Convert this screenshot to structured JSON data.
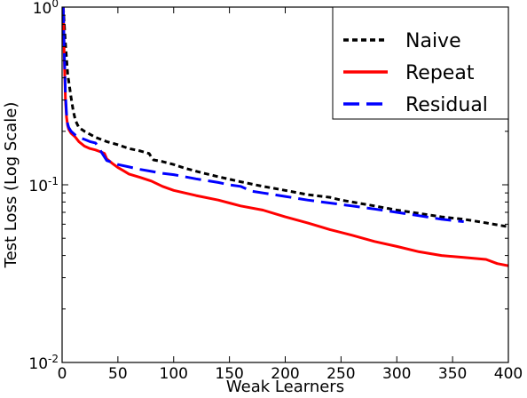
{
  "chart_data": {
    "type": "line",
    "title": "",
    "xlabel": "Weak Learners",
    "ylabel": "Test Loss (Log Scale)",
    "xlim": [
      0,
      400
    ],
    "ylim": [
      0.01,
      1
    ],
    "yscale": "log",
    "grid": false,
    "legend_placement": "top-right",
    "x_ticks": [
      0,
      50,
      100,
      150,
      200,
      250,
      300,
      350,
      400
    ],
    "x_tick_labels": [
      "0",
      "50",
      "100",
      "150",
      "200",
      "250",
      "300",
      "350",
      "400"
    ],
    "y_ticks": [
      1,
      0.1,
      0.01
    ],
    "y_tick_labels": [
      {
        "base": "10",
        "exp": "0"
      },
      {
        "base": "10",
        "exp": "-1"
      },
      {
        "base": "10",
        "exp": "-2"
      }
    ],
    "series": [
      {
        "name": "Naive",
        "color": "#000000",
        "style": "dotted",
        "x": [
          1,
          3,
          5,
          8,
          10,
          12,
          15,
          20,
          30,
          40,
          50,
          60,
          70,
          78,
          80,
          82,
          90,
          100,
          110,
          125,
          140,
          160,
          180,
          200,
          220,
          240,
          250,
          260,
          280,
          300,
          320,
          340,
          360,
          380,
          400
        ],
        "y": [
          1.0,
          0.62,
          0.42,
          0.31,
          0.26,
          0.23,
          0.21,
          0.2,
          0.185,
          0.175,
          0.168,
          0.16,
          0.155,
          0.15,
          0.143,
          0.138,
          0.135,
          0.13,
          0.124,
          0.117,
          0.111,
          0.104,
          0.098,
          0.093,
          0.088,
          0.085,
          0.082,
          0.08,
          0.076,
          0.072,
          0.069,
          0.066,
          0.064,
          0.061,
          0.058
        ]
      },
      {
        "name": "Repeat",
        "color": "#ff0000",
        "style": "solid",
        "x": [
          1,
          2,
          3,
          4,
          5,
          6,
          8,
          10,
          12,
          15,
          20,
          25,
          30,
          35,
          38,
          40,
          45,
          50,
          55,
          60,
          70,
          80,
          90,
          100,
          120,
          140,
          150,
          160,
          180,
          200,
          220,
          240,
          260,
          280,
          300,
          320,
          340,
          360,
          380,
          390,
          400
        ],
        "y": [
          1.0,
          0.5,
          0.3,
          0.24,
          0.215,
          0.205,
          0.195,
          0.19,
          0.185,
          0.175,
          0.165,
          0.16,
          0.157,
          0.153,
          0.15,
          0.14,
          0.132,
          0.125,
          0.12,
          0.115,
          0.11,
          0.105,
          0.098,
          0.093,
          0.087,
          0.082,
          0.079,
          0.076,
          0.072,
          0.066,
          0.061,
          0.056,
          0.052,
          0.048,
          0.045,
          0.042,
          0.04,
          0.039,
          0.038,
          0.036,
          0.035
        ]
      },
      {
        "name": "Residual",
        "color": "#0000ff",
        "style": "dashed",
        "x": [
          1,
          2,
          3,
          4,
          5,
          6,
          8,
          10,
          12,
          15,
          20,
          25,
          30,
          40,
          50,
          60,
          70,
          80,
          90,
          100,
          120,
          140,
          150,
          160,
          170,
          180,
          200,
          220,
          240,
          260,
          280,
          300,
          320,
          340,
          360
        ],
        "y": [
          1.0,
          0.55,
          0.32,
          0.25,
          0.22,
          0.21,
          0.2,
          0.195,
          0.19,
          0.185,
          0.18,
          0.175,
          0.172,
          0.137,
          0.13,
          0.126,
          0.122,
          0.119,
          0.116,
          0.114,
          0.108,
          0.103,
          0.1,
          0.098,
          0.092,
          0.09,
          0.086,
          0.082,
          0.079,
          0.076,
          0.073,
          0.07,
          0.067,
          0.064,
          0.062
        ]
      }
    ]
  }
}
